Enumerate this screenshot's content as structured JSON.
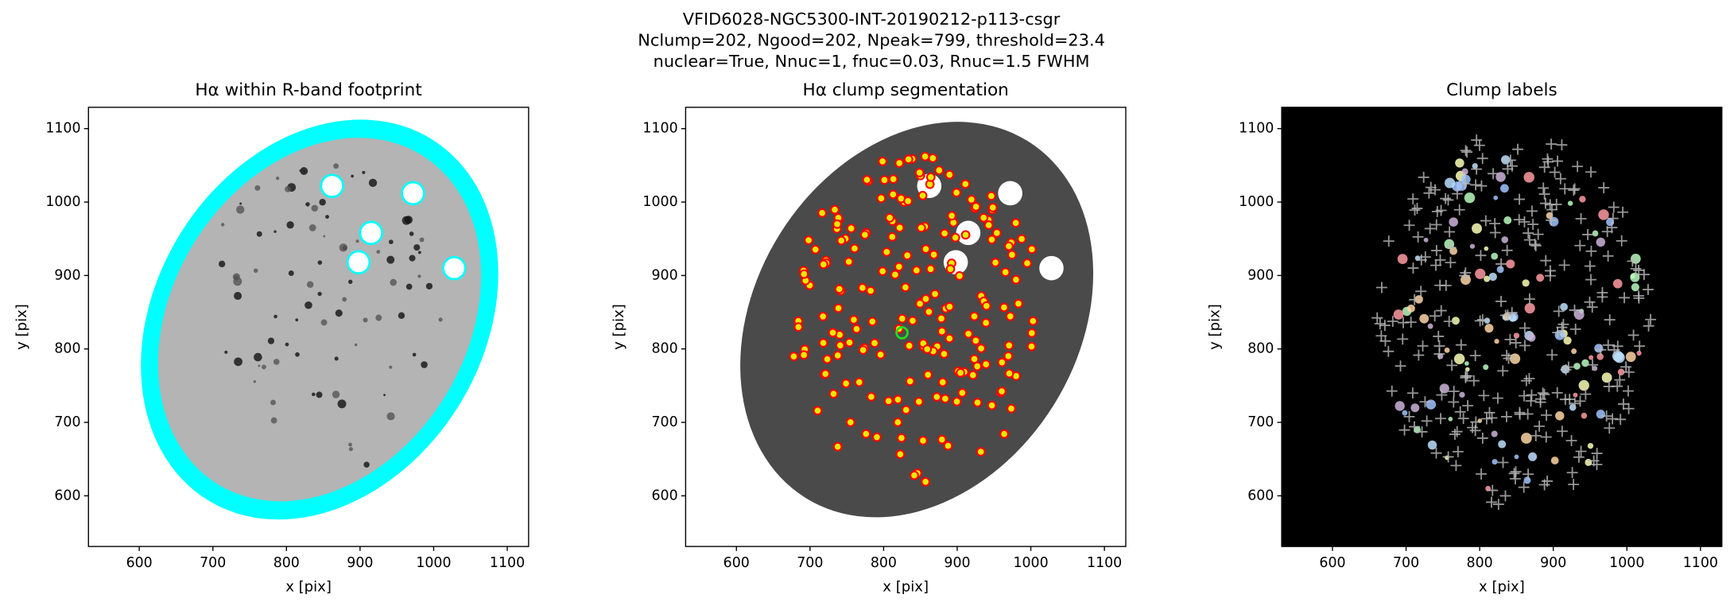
{
  "title": [
    "VFID6028-NGC5300-INT-20190212-p113-csgr",
    "Nclump=202, Ngood=202, Npeak=799, threshold=23.4",
    "nuclear=True, Nnuc=1, fnuc=0.03, Rnuc=1.5 FWHM"
  ],
  "chart_data": [
    {
      "type": "image",
      "title": "Hα within R-band footprint",
      "xlabel": "x [pix]",
      "ylabel": "y [pix]",
      "xlim": [
        531,
        1129
      ],
      "ylim": [
        531,
        1129
      ],
      "xticks": [
        600,
        700,
        800,
        900,
        1000,
        1100
      ],
      "yticks": [
        600,
        700,
        800,
        900,
        1000,
        1100
      ]
    },
    {
      "type": "image",
      "title": "Hα clump segmentation",
      "xlabel": "x [pix]",
      "ylabel": "y [pix]",
      "xlim": [
        531,
        1129
      ],
      "ylim": [
        531,
        1129
      ],
      "xticks": [
        600,
        700,
        800,
        900,
        1000,
        1100
      ],
      "yticks": [
        600,
        700,
        800,
        900,
        1000,
        1100
      ]
    },
    {
      "type": "image",
      "title": "Clump labels",
      "xlabel": "x [pix]",
      "ylabel": "y [pix]",
      "xlim": [
        531,
        1129
      ],
      "ylim": [
        531,
        1129
      ],
      "xticks": [
        600,
        700,
        800,
        900,
        1000,
        1100
      ],
      "yticks": [
        600,
        700,
        800,
        900,
        1000,
        1100
      ]
    }
  ]
}
